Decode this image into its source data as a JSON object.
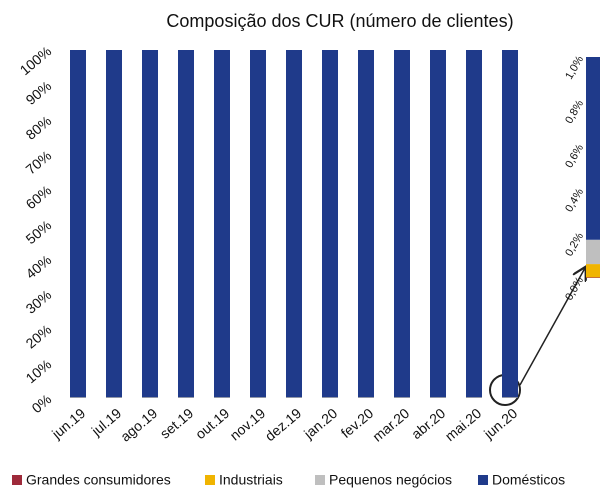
{
  "chart_data": {
    "type": "bar",
    "title": "Composição dos CUR (número de clientes)",
    "stacked": true,
    "categories": [
      "jun.19",
      "jul.19",
      "ago.19",
      "set.19",
      "out.19",
      "nov.19",
      "dez.19",
      "jan.20",
      "fev.20",
      "mar.20",
      "abr.20",
      "mai.20",
      "jun.20"
    ],
    "series": [
      {
        "name": "Grandes consumidores",
        "color": "#9e2a3a",
        "values": [
          0.003,
          0.003,
          0.003,
          0.003,
          0.003,
          0.003,
          0.003,
          0.003,
          0.003,
          0.003,
          0.003,
          0.003,
          0.003
        ]
      },
      {
        "name": "Industriais",
        "color": "#f0b400",
        "values": [
          0.06,
          0.06,
          0.06,
          0.06,
          0.06,
          0.06,
          0.06,
          0.06,
          0.06,
          0.06,
          0.06,
          0.06,
          0.06
        ]
      },
      {
        "name": "Pequenos negócios",
        "color": "#bfbfbf",
        "values": [
          0.11,
          0.11,
          0.11,
          0.11,
          0.11,
          0.11,
          0.11,
          0.11,
          0.11,
          0.11,
          0.11,
          0.11,
          0.11
        ]
      },
      {
        "name": "Domésticos",
        "color": "#1f3a8a",
        "values": [
          99.827,
          99.827,
          99.827,
          99.827,
          99.827,
          99.827,
          99.827,
          99.827,
          99.827,
          99.827,
          99.827,
          99.827,
          99.827
        ]
      }
    ],
    "ylim": [
      0,
      100
    ],
    "yticks": [
      {
        "value": 0,
        "label": "0%"
      },
      {
        "value": 10,
        "label": "10%"
      },
      {
        "value": 20,
        "label": "20%"
      },
      {
        "value": 30,
        "label": "30%"
      },
      {
        "value": 40,
        "label": "40%"
      },
      {
        "value": 50,
        "label": "50%"
      },
      {
        "value": 60,
        "label": "60%"
      },
      {
        "value": 70,
        "label": "70%"
      },
      {
        "value": 80,
        "label": "80%"
      },
      {
        "value": 90,
        "label": "90%"
      },
      {
        "value": 100,
        "label": "100%"
      }
    ],
    "grid": false,
    "legend": "bottom",
    "inset": {
      "ylim": [
        0,
        1.0
      ],
      "yticks": [
        {
          "value": 0,
          "label": "0,0%"
        },
        {
          "value": 0.2,
          "label": "0,2%"
        },
        {
          "value": 0.4,
          "label": "0,4%"
        },
        {
          "value": 0.6,
          "label": "0,6%"
        },
        {
          "value": 0.8,
          "label": "0,8%"
        },
        {
          "value": 1.0,
          "label": "1,0%"
        }
      ]
    }
  }
}
